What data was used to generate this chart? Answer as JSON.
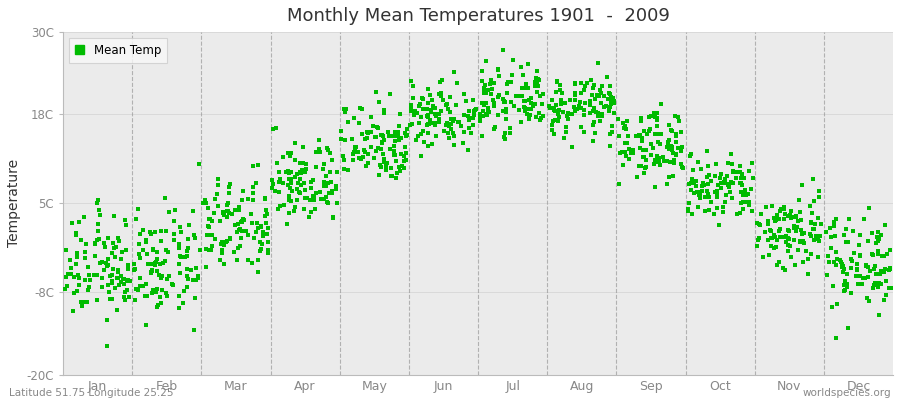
{
  "title": "Monthly Mean Temperatures 1901  -  2009",
  "ylabel": "Temperature",
  "subtitle_left": "Latitude 51.75 Longitude 25.25",
  "subtitle_right": "worldspecies.org",
  "legend_label": "Mean Temp",
  "ylim": [
    -20,
    30
  ],
  "yticks": [
    -20,
    -8,
    5,
    18,
    30
  ],
  "ytick_labels": [
    "-20C",
    "-8C",
    "5C",
    "18C",
    "30C"
  ],
  "months": [
    "Jan",
    "Feb",
    "Mar",
    "Apr",
    "May",
    "Jun",
    "Jul",
    "Aug",
    "Sep",
    "Oct",
    "Nov",
    "Dec"
  ],
  "dot_color": "#00bb00",
  "plot_bg": "#ebebeb",
  "fig_bg": "#ffffff",
  "dot_size": 6,
  "num_years": 109,
  "monthly_means": [
    -4.5,
    -4.2,
    1.5,
    8.0,
    14.0,
    18.0,
    20.0,
    19.0,
    13.5,
    7.0,
    1.0,
    -3.5
  ],
  "monthly_stds": [
    3.8,
    3.8,
    3.5,
    3.0,
    3.0,
    2.5,
    2.2,
    2.2,
    2.5,
    2.5,
    3.0,
    3.5
  ],
  "grid_color": "#999999",
  "spine_color": "#bbbbbb",
  "tick_color": "#888888",
  "text_color": "#333333",
  "subtitle_color": "#888888"
}
